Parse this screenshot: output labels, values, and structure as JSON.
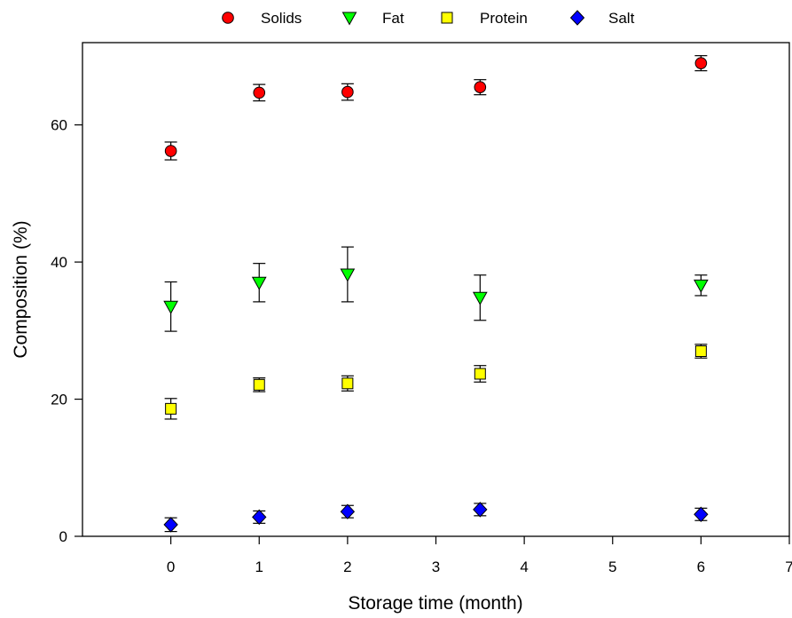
{
  "chart_data": {
    "type": "scatter",
    "title": "",
    "xlabel": "Storage time (month)",
    "ylabel": "Composition (%)",
    "xlim": [
      -1,
      7
    ],
    "ylim": [
      0,
      72
    ],
    "x_ticks": [
      0,
      1,
      2,
      3,
      4,
      5,
      6,
      7
    ],
    "y_ticks": [
      0,
      20,
      40,
      60
    ],
    "grid": false,
    "legend_position": "top",
    "series": [
      {
        "name": "Solids",
        "marker": "circle",
        "color": "#ff0000",
        "x": [
          0,
          1,
          2,
          3.5,
          6
        ],
        "y": [
          56.2,
          64.7,
          64.8,
          65.5,
          69.0
        ],
        "err": [
          1.3,
          1.2,
          1.2,
          1.1,
          1.1
        ]
      },
      {
        "name": "Fat",
        "marker": "triangle-down",
        "color": "#00ff00",
        "x": [
          0,
          1,
          2,
          3.5,
          6
        ],
        "y": [
          33.5,
          37.0,
          38.2,
          34.8,
          36.6
        ],
        "err": [
          3.6,
          2.8,
          4.0,
          3.3,
          1.5
        ]
      },
      {
        "name": "Protein",
        "marker": "square",
        "color": "#ffff00",
        "x": [
          0,
          1,
          2,
          3.5,
          6
        ],
        "y": [
          18.6,
          22.1,
          22.3,
          23.7,
          27.0
        ],
        "err": [
          1.5,
          1.0,
          1.1,
          1.2,
          1.0
        ]
      },
      {
        "name": "Salt",
        "marker": "diamond",
        "color": "#0000ff",
        "x": [
          0,
          1,
          2,
          3.5,
          6
        ],
        "y": [
          1.7,
          2.8,
          3.6,
          3.9,
          3.2
        ],
        "err": [
          1.0,
          0.9,
          0.9,
          0.9,
          0.9
        ]
      }
    ]
  }
}
